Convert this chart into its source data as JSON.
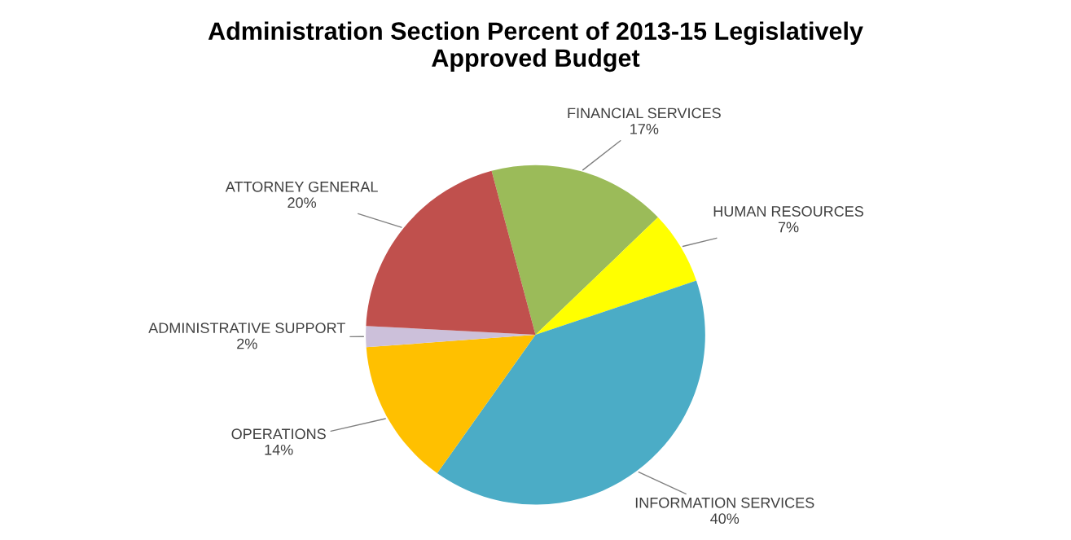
{
  "chart_data": {
    "type": "pie",
    "title": "Administration Section Percent of 2013-15 Legislatively\nApproved Budget",
    "categories": [
      "FINANCIAL SERVICES",
      "HUMAN RESOURCES",
      "INFORMATION SERVICES",
      "OPERATIONS",
      "ADMINISTRATIVE SUPPORT",
      "ATTORNEY GENERAL"
    ],
    "values": [
      17,
      7,
      40,
      14,
      2,
      20
    ],
    "colors": [
      "#9bbb59",
      "#ffff00",
      "#4bacc6",
      "#ffc000",
      "#ccc0da",
      "#c0504d"
    ],
    "value_labels": [
      "17%",
      "7%",
      "40%",
      "14%",
      "2%",
      "20%"
    ],
    "legend": false
  }
}
